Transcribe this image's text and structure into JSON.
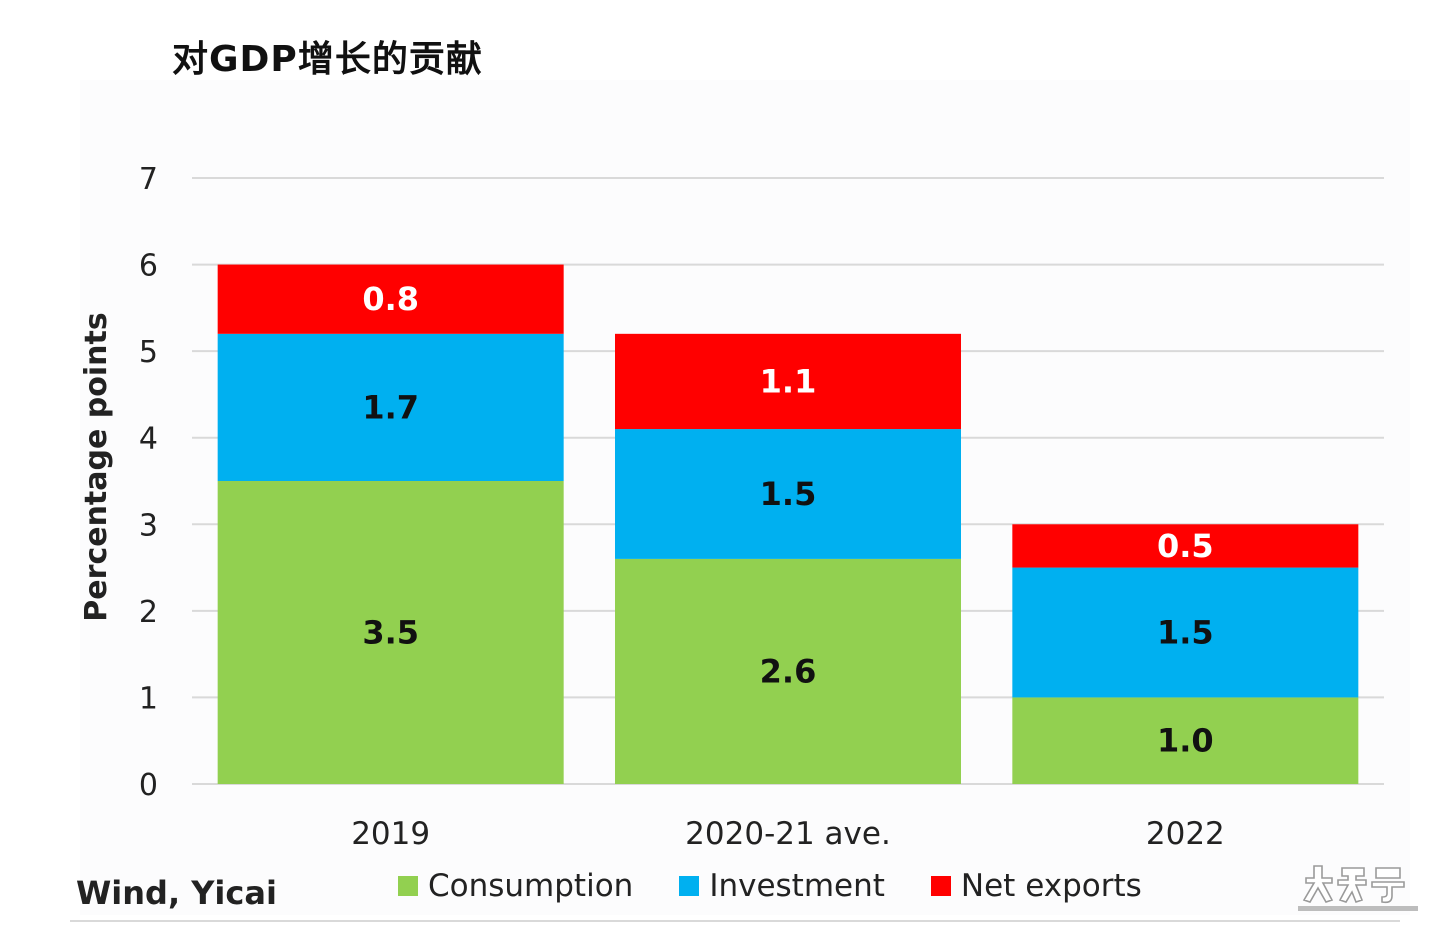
{
  "title": "对GDP增长的贡献",
  "source": "Wind, Yicai",
  "chart_data": {
    "type": "bar",
    "stacked": true,
    "categories": [
      "2019",
      "2020-21 ave.",
      "2022"
    ],
    "series": [
      {
        "name": "Consumption",
        "color": "#92d050",
        "label_color": "#111111",
        "values": [
          3.5,
          2.6,
          1.0
        ],
        "labels": [
          "3.5",
          "2.6",
          "1.0"
        ]
      },
      {
        "name": "Investment",
        "color": "#00b0f0",
        "label_color": "#111111",
        "values": [
          1.7,
          1.5,
          1.5
        ],
        "labels": [
          "1.7",
          "1.5",
          "1.5"
        ]
      },
      {
        "name": "Net exports",
        "color": "#ff0000",
        "label_color": "#ffffff",
        "values": [
          0.8,
          1.1,
          0.5
        ],
        "labels": [
          "0.8",
          "1.1",
          "0.5"
        ]
      }
    ],
    "ylabel": "Percentage points",
    "ylim": [
      0,
      7
    ],
    "yticks": [
      0,
      1,
      2,
      3,
      4,
      5,
      6,
      7
    ],
    "grid": true,
    "legend_position": "bottom"
  }
}
